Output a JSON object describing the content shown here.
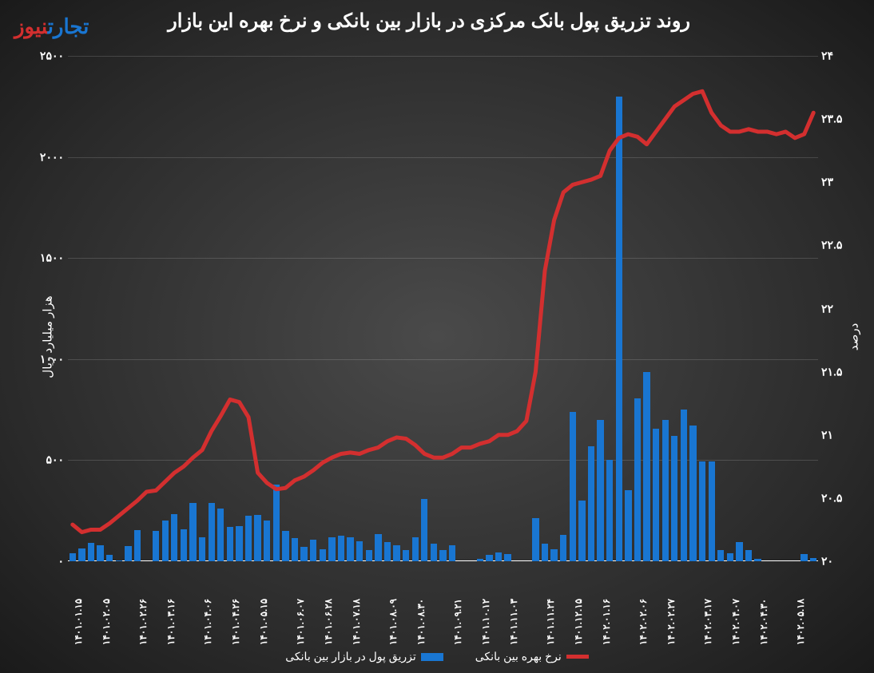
{
  "title": "روند تزریق پول بانک مرکزی در بازار بین بانکی و نرخ بهره این بازار",
  "logo": {
    "part1": "تجارت",
    "part2": "نیوز"
  },
  "chart": {
    "type": "combo-bar-line",
    "background_gradient": [
      "#4a4a4a",
      "#2a2a2a",
      "#1a1a1a"
    ],
    "left_axis": {
      "label": "هزار میلیارد ریال",
      "min": 0,
      "max": 2500,
      "step": 500,
      "ticks": [
        "۰",
        "۵۰۰",
        "۱۰۰۰",
        "۱۵۰۰",
        "۲۰۰۰",
        "۲۵۰۰"
      ]
    },
    "right_axis": {
      "label": "درصد",
      "min": 20,
      "max": 24,
      "step": 0.5,
      "ticks": [
        "۲۰",
        "۲۰.۵",
        "۲۱",
        "۲۱.۵",
        "۲۲",
        "۲۲.۵",
        "۲۳",
        "۲۳.۵",
        "۲۴"
      ]
    },
    "x_labels": [
      "۱۴۰۱.۰۱.۱۵",
      "۱۴۰۱.۰۲.۰۵",
      "۱۴۰۱.۰۲.۲۶",
      "۱۴۰۱.۰۳.۱۶",
      "۱۴۰۱.۰۴.۰۶",
      "۱۴۰۱.۰۴.۲۶",
      "۱۴۰۱.۰۵.۱۵",
      "۱۴۰۱.۰۶.۰۷",
      "۱۴۰۱.۰۶.۲۸",
      "۱۴۰۱.۰۷.۱۸",
      "۱۴۰۱.۰۸.۰۹",
      "۱۴۰۱.۰۸.۳۰",
      "۱۴۰۱.۰۹.۲۱",
      "۱۴۰۱.۱۰.۱۲",
      "۱۴۰۱.۱۱.۰۳",
      "۱۴۰۱.۱۱.۲۴",
      "۱۴۰۱.۱۲.۱۵",
      "۱۴۰۲.۰۱.۱۶",
      "۱۴۰۲.۰۲.۰۶",
      "۱۴۰۲.۰۲.۲۷",
      "۱۴۰۲.۰۳.۱۷",
      "۱۴۰۲.۰۴.۰۷",
      "۱۴۰۲.۰۴.۳۰",
      "۱۴۰۲.۰۵.۱۸"
    ],
    "bars": {
      "color": "#1976d2",
      "values": [
        40,
        65,
        90,
        80,
        30,
        5,
        75,
        155,
        0,
        150,
        200,
        235,
        160,
        290,
        120,
        290,
        260,
        170,
        175,
        225,
        230,
        200,
        380,
        150,
        115,
        70,
        105,
        60,
        120,
        125,
        120,
        100,
        55,
        135,
        95,
        80,
        55,
        120,
        310,
        85,
        55,
        80,
        0,
        0,
        10,
        30,
        45,
        35,
        0,
        0,
        215,
        85,
        60,
        130,
        740,
        300,
        570,
        700,
        500,
        2300,
        350,
        805,
        935,
        655,
        700,
        620,
        750,
        670,
        495,
        495,
        55,
        40,
        95,
        55,
        10,
        0,
        0,
        0,
        0,
        35,
        15
      ]
    },
    "line": {
      "color": "#d32f2f",
      "width": 5,
      "values": [
        20.29,
        20.23,
        20.25,
        20.25,
        20.3,
        20.36,
        20.42,
        20.48,
        20.55,
        20.56,
        20.63,
        20.7,
        20.75,
        20.82,
        20.88,
        21.03,
        21.15,
        21.28,
        21.26,
        21.14,
        20.7,
        20.62,
        20.57,
        20.58,
        20.64,
        20.67,
        20.72,
        20.78,
        20.82,
        20.85,
        20.86,
        20.85,
        20.88,
        20.9,
        20.95,
        20.98,
        20.97,
        20.92,
        20.85,
        20.82,
        20.82,
        20.85,
        20.9,
        20.9,
        20.93,
        20.95,
        21.0,
        21.0,
        21.03,
        21.11,
        21.5,
        22.3,
        22.7,
        22.92,
        22.98,
        23.0,
        23.02,
        23.05,
        23.25,
        23.35,
        23.38,
        23.36,
        23.3,
        23.4,
        23.5,
        23.6,
        23.65,
        23.7,
        23.72,
        23.55,
        23.45,
        23.4,
        23.4,
        23.42,
        23.4,
        23.4,
        23.38,
        23.4,
        23.35,
        23.38,
        23.55
      ]
    },
    "legend": {
      "bar_label": "تزریق پول در بازار بین بانکی",
      "line_label": "نرخ بهره بین بانکی"
    },
    "tick_color": "#ffffff",
    "grid_color": "rgba(255,255,255,0.15)"
  }
}
